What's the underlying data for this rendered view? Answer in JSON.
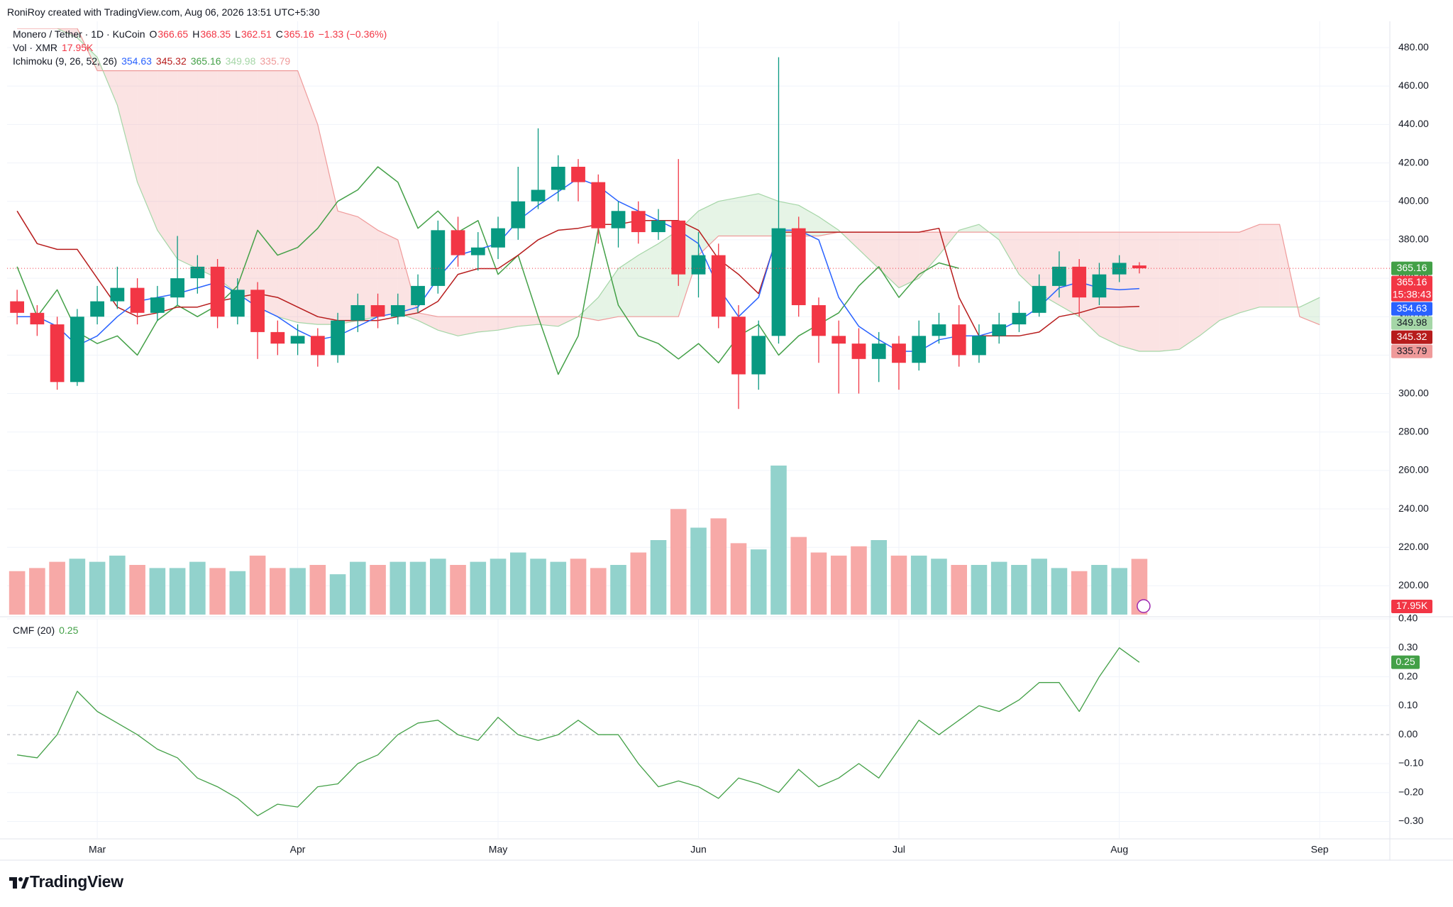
{
  "header": "RoniRoy created with TradingView.com, Aug 06, 2026 13:51 UTC+5:30",
  "logo": "TradingView",
  "chart_data": [
    {
      "type": "candlestick",
      "title": "Monero / Tether · 1D · KuCoin",
      "categories": [
        null,
        null,
        null,
        null,
        "Mar",
        null,
        null,
        null,
        null,
        null,
        null,
        null,
        null,
        null,
        "Apr",
        null,
        null,
        null,
        null,
        null,
        null,
        null,
        null,
        null,
        "May",
        null,
        null,
        null,
        null,
        null,
        null,
        null,
        null,
        null,
        "Jun",
        null,
        null,
        null,
        null,
        null,
        null,
        null,
        null,
        null,
        "Jul",
        null,
        null,
        null,
        null,
        null,
        null,
        null,
        null,
        null,
        null,
        "Aug",
        null,
        null,
        null,
        null,
        null,
        null,
        null,
        null,
        null,
        "Sep",
        null,
        null,
        null
      ],
      "open": [
        348,
        342,
        336,
        306,
        340,
        348,
        355,
        342,
        350,
        360,
        366,
        340,
        354,
        332,
        326,
        330,
        320,
        338,
        346,
        340,
        346,
        356,
        385,
        372,
        376,
        386,
        400,
        406,
        418,
        410,
        386,
        395,
        384,
        390,
        362,
        372,
        340,
        310,
        330,
        386,
        346,
        330,
        326,
        318,
        326,
        316,
        330,
        336,
        320,
        330,
        336,
        342,
        356,
        366,
        350,
        362,
        366.65,
        null,
        null,
        null,
        null,
        null,
        null,
        null,
        null,
        null,
        null,
        null,
        null
      ],
      "high": [
        354,
        346,
        340,
        344,
        356,
        366,
        360,
        356,
        382,
        372,
        370,
        360,
        358,
        338,
        336,
        334,
        342,
        352,
        352,
        352,
        362,
        390,
        392,
        384,
        392,
        418,
        438,
        424,
        422,
        414,
        400,
        400,
        396,
        422,
        384,
        378,
        346,
        338,
        475,
        392,
        350,
        338,
        334,
        332,
        330,
        338,
        342,
        346,
        336,
        342,
        348,
        362,
        374,
        370,
        368,
        372,
        368.35,
        null,
        null,
        null,
        null,
        null,
        null,
        null,
        null,
        null,
        null,
        null,
        null
      ],
      "low": [
        336,
        330,
        302,
        304,
        336,
        344,
        336,
        338,
        346,
        352,
        334,
        336,
        318,
        320,
        320,
        314,
        316,
        332,
        334,
        336,
        342,
        352,
        366,
        364,
        370,
        380,
        396,
        400,
        400,
        378,
        376,
        378,
        380,
        356,
        350,
        334,
        292,
        302,
        326,
        340,
        316,
        300,
        300,
        306,
        302,
        312,
        326,
        314,
        316,
        326,
        332,
        340,
        350,
        340,
        346,
        358,
        362.51,
        null,
        null,
        null,
        null,
        null,
        null,
        null,
        null,
        null,
        null,
        null,
        null
      ],
      "close": [
        342,
        336,
        306,
        340,
        348,
        355,
        342,
        350,
        360,
        366,
        340,
        354,
        332,
        326,
        330,
        320,
        338,
        346,
        340,
        346,
        356,
        385,
        372,
        376,
        386,
        400,
        406,
        418,
        410,
        386,
        395,
        384,
        390,
        362,
        372,
        340,
        310,
        330,
        386,
        346,
        330,
        326,
        318,
        326,
        316,
        330,
        336,
        320,
        330,
        336,
        342,
        356,
        366,
        350,
        362,
        368,
        365.16,
        null,
        null,
        null,
        null,
        null,
        null,
        null,
        null,
        null,
        null,
        null,
        null
      ],
      "ohlc_labels": [
        "O",
        "H",
        "L",
        "C"
      ],
      "change_label": "−1.33 (−0.36%)",
      "countdown": "15:38:43",
      "up_color": "#089981",
      "down_color": "#f23645",
      "ylim": [
        185,
        490
      ],
      "yticks": [
        {
          "value": 200,
          "label": "200.00"
        },
        {
          "value": 220,
          "label": "220.00"
        },
        {
          "value": 240,
          "label": "240.00"
        },
        {
          "value": 260,
          "label": "260.00"
        },
        {
          "value": 280,
          "label": "280.00"
        },
        {
          "value": 300,
          "label": "300.00"
        },
        {
          "value": 320,
          "label": "320.00"
        },
        {
          "value": 340,
          "label": "340.00"
        },
        {
          "value": 360,
          "label": "360.00"
        },
        {
          "value": 380,
          "label": "380.00"
        },
        {
          "value": 400,
          "label": "400.00"
        },
        {
          "value": 420,
          "label": "420.00"
        },
        {
          "value": 440,
          "label": "440.00"
        },
        {
          "value": 460,
          "label": "460.00"
        },
        {
          "value": 480,
          "label": "480.00"
        }
      ],
      "grid": true,
      "indicator": {
        "title": "Ichimoku (9, 26, 52, 26)",
        "series": [
          {
            "color": "#2962ff",
            "values": [
              340,
              340,
              335,
              325,
              330,
              340,
              348,
              350,
              352,
              355,
              358,
              352,
              345,
              340,
              333,
              328,
              330,
              335,
              340,
              342,
              345,
              360,
              372,
              375,
              378,
              390,
              398,
              405,
              412,
              408,
              400,
              395,
              390,
              385,
              378,
              355,
              340,
              350,
              385,
              385,
              380,
              350,
              335,
              328,
              322,
              322,
              328,
              330,
              330,
              333,
              338,
              345,
              355,
              358,
              355,
              354,
              354.63,
              null,
              null,
              null,
              null,
              null,
              null,
              null,
              null,
              null,
              null,
              null,
              null
            ]
          },
          {
            "color": "#b71c1c",
            "values": [
              395,
              378,
              375,
              375,
              360,
              345,
              340,
              342,
              345,
              345,
              348,
              350,
              352,
              350,
              345,
              340,
              338,
              338,
              338,
              340,
              342,
              348,
              362,
              365,
              365,
              372,
              380,
              385,
              386,
              388,
              388,
              390,
              390,
              390,
              385,
              370,
              362,
              352,
              384,
              384,
              384,
              384,
              384,
              384,
              384,
              384,
              386,
              350,
              330,
              330,
              330,
              332,
              340,
              342,
              345,
              345,
              345.32,
              null,
              null,
              null,
              null,
              null,
              null,
              null,
              null,
              null,
              null,
              null,
              null
            ]
          },
          {
            "color": "#43a047",
            "values": [
              366,
              340,
              354,
              332,
              326,
              330,
              320,
              338,
              346,
              340,
              346,
              356,
              385,
              372,
              376,
              386,
              400,
              406,
              418,
              410,
              386,
              395,
              384,
              390,
              362,
              372,
              340,
              310,
              330,
              386,
              346,
              330,
              326,
              318,
              326,
              316,
              330,
              336,
              320,
              330,
              336,
              342,
              356,
              366,
              350,
              362,
              368,
              365.16,
              null,
              null,
              null,
              null,
              null,
              null,
              null,
              null,
              null,
              null,
              null,
              null,
              null,
              null,
              null,
              null,
              null,
              null,
              null,
              null,
              null
            ]
          },
          {
            "color": "#a5d6a7",
            "values": [
              500,
              495,
              490,
              485,
              475,
              450,
              410,
              385,
              370,
              365,
              360,
              352,
              345,
              340,
              337,
              336,
              336,
              338,
              340,
              342,
              338,
              333,
              330,
              332,
              333,
              335,
              336,
              335,
              340,
              350,
              365,
              372,
              378,
              385,
              395,
              400,
              402,
              404,
              400,
              398,
              392,
              385,
              375,
              365,
              355,
              360,
              372,
              385,
              388,
              380,
              362,
              352,
              346,
              340,
              330,
              325,
              322,
              322,
              323,
              330,
              338,
              342,
              345,
              345,
              345,
              349.98,
              null,
              null,
              null
            ]
          },
          {
            "color": "#ef9a9a",
            "values": [
              490,
              490,
              490,
              490,
              468,
              468,
              468,
              468,
              468,
              468,
              468,
              468,
              468,
              468,
              468,
              440,
              395,
              392,
              385,
              380,
              342,
              340,
              340,
              340,
              340,
              340,
              340,
              340,
              340,
              338,
              340,
              340,
              340,
              340,
              372,
              382,
              382,
              382,
              382,
              382,
              382,
              384,
              384,
              384,
              384,
              384,
              384,
              384,
              384,
              384,
              384,
              384,
              384,
              384,
              384,
              384,
              384,
              384,
              384,
              384,
              384,
              384,
              388,
              388,
              340,
              335.79,
              null,
              null,
              null
            ]
          }
        ]
      }
    },
    {
      "type": "bar",
      "title": "Vol · XMR",
      "values": [
        14,
        15,
        17,
        18,
        17,
        19,
        16,
        15,
        15,
        17,
        15,
        14,
        19,
        15,
        15,
        16,
        13,
        17,
        16,
        17,
        17,
        18,
        16,
        17,
        18,
        20,
        18,
        17,
        18,
        15,
        16,
        20,
        24,
        34,
        28,
        31,
        23,
        21,
        48,
        25,
        20,
        19,
        22,
        24,
        19,
        19,
        18,
        16,
        16,
        17,
        16,
        18,
        15,
        14,
        16,
        15,
        17.95,
        null,
        null,
        null,
        null,
        null,
        null,
        null,
        null,
        null,
        null,
        null,
        null
      ],
      "value_labels": [
        null,
        null,
        null,
        null,
        null,
        null,
        null,
        null,
        null,
        null,
        null,
        null,
        null,
        null,
        null,
        null,
        null,
        null,
        null,
        null,
        null,
        null,
        null,
        null,
        null,
        null,
        null,
        null,
        null,
        null,
        null,
        null,
        null,
        null,
        null,
        null,
        null,
        null,
        null,
        null,
        null,
        null,
        null,
        null,
        null,
        null,
        null,
        null,
        null,
        null,
        null,
        null,
        null,
        null,
        null,
        null,
        "17.95K",
        null,
        null,
        null,
        null,
        null,
        null,
        null,
        null,
        null,
        null,
        null,
        null
      ],
      "up_color": "#92d2cc",
      "down_color": "#f7a9a7"
    },
    {
      "type": "line",
      "title": "CMF (20)",
      "values": [
        -0.07,
        -0.08,
        0,
        0.15,
        0.08,
        0.04,
        0,
        -0.05,
        -0.08,
        -0.15,
        -0.18,
        -0.22,
        -0.28,
        -0.24,
        -0.25,
        -0.18,
        -0.17,
        -0.1,
        -0.07,
        0,
        0.04,
        0.05,
        0,
        -0.02,
        0.06,
        0,
        -0.02,
        0,
        0.05,
        0,
        0,
        -0.1,
        -0.18,
        -0.16,
        -0.18,
        -0.22,
        -0.15,
        -0.17,
        -0.2,
        -0.12,
        -0.18,
        -0.15,
        -0.1,
        -0.15,
        -0.05,
        0.05,
        0,
        0.05,
        0.1,
        0.08,
        0.12,
        0.18,
        0.18,
        0.08,
        0.2,
        0.3,
        0.25,
        null,
        null,
        null,
        null,
        null,
        null,
        null,
        null,
        null,
        null,
        null,
        null
      ],
      "color": "#43a047",
      "ylim": [
        -0.36,
        0.4
      ],
      "yticks": [
        {
          "value": 0.4,
          "label": "0.40"
        },
        {
          "value": 0.3,
          "label": "0.30"
        },
        {
          "value": 0.2,
          "label": "0.20"
        },
        {
          "value": 0.1,
          "label": "0.10"
        },
        {
          "value": 0,
          "label": "0.00"
        },
        {
          "value": -0.1,
          "label": "−0.10"
        },
        {
          "value": -0.2,
          "label": "−0.20"
        },
        {
          "value": -0.3,
          "label": "−0.30"
        }
      ],
      "grid": true
    }
  ]
}
